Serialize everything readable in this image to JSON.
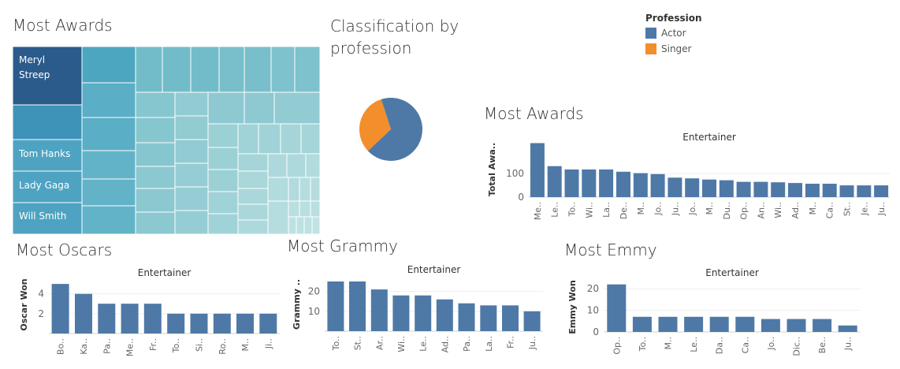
{
  "titles": {
    "treemap": "Most Awards",
    "pie": "Classification by profession",
    "awards": "Most Awards",
    "oscars": "Most Oscars",
    "grammy": "Most Grammy",
    "emmy": "Most Emmy"
  },
  "legend": {
    "title": "Profession",
    "items": [
      {
        "label": "Actor",
        "color": "#4e79a7"
      },
      {
        "label": "Singer",
        "color": "#f28e2b"
      }
    ]
  },
  "treemap": {
    "labeled": [
      "Meryl Streep",
      "Tom Hanks",
      "Lady Gaga",
      "Will Smith"
    ]
  },
  "chart_data": [
    {
      "id": "pie",
      "type": "pie",
      "labels": [
        "Actor",
        "Singer"
      ],
      "values": [
        68,
        32
      ],
      "colors": [
        "#4e79a7",
        "#f28e2b"
      ]
    },
    {
      "id": "awards",
      "type": "bar",
      "title": "Entertainer",
      "ylabel": "Total Awa..",
      "ylim": [
        0,
        235
      ],
      "yticks": [
        0,
        100
      ],
      "categories": [
        "Me..",
        "Le..",
        "To..",
        "Wi..",
        "La..",
        "De..",
        "M..",
        "Jo..",
        "Ju..",
        "Jo..",
        "M..",
        "Du..",
        "Op..",
        "An..",
        "Wi..",
        "Ad..",
        "M..",
        "Ca..",
        "St..",
        "Je..",
        "Ju.."
      ],
      "values": [
        230,
        132,
        118,
        118,
        118,
        108,
        102,
        98,
        83,
        80,
        75,
        72,
        65,
        65,
        63,
        60,
        57,
        57,
        50,
        50,
        50
      ]
    },
    {
      "id": "oscars",
      "type": "bar",
      "title": "Entertainer",
      "ylabel": "Oscar Won",
      "ylim": [
        0,
        5.8
      ],
      "yticks": [
        2,
        4
      ],
      "categories": [
        "Bo..",
        "Ka..",
        "Pa..",
        "Me..",
        "Fr..",
        "To..",
        "Si..",
        "Ro..",
        "M..",
        "Ji.."
      ],
      "values": [
        5,
        4,
        3,
        3,
        3,
        2,
        2,
        2,
        2,
        2
      ]
    },
    {
      "id": "grammy",
      "type": "bar",
      "title": "Entertainer",
      "ylabel": "Grammy ..",
      "ylim": [
        0,
        27
      ],
      "yticks": [
        10,
        20
      ],
      "categories": [
        "To..",
        "St..",
        "Ar..",
        "Wi..",
        "Le..",
        "Ad..",
        "Pa..",
        "La..",
        "Fr..",
        "Ju.."
      ],
      "values": [
        25,
        25,
        21,
        18,
        18,
        16,
        14,
        13,
        13,
        10
      ]
    },
    {
      "id": "emmy",
      "type": "bar",
      "title": "Entertainer",
      "ylabel": "Emmy Won",
      "ylim": [
        0,
        23
      ],
      "yticks": [
        0,
        10,
        20
      ],
      "categories": [
        "Op..",
        "To..",
        "M..",
        "Le..",
        "Da..",
        "Ca..",
        "Jo..",
        "Dic..",
        "Be..",
        "Ju.."
      ],
      "values": [
        22,
        7,
        7,
        7,
        7,
        7,
        6,
        6,
        6,
        3
      ]
    }
  ]
}
